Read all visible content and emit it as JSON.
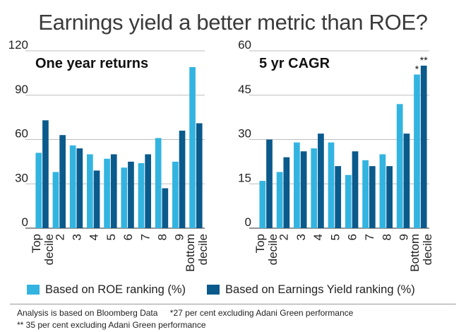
{
  "title": "Earnings yield a better metric than ROE?",
  "colors": {
    "roe": "#33b4e0",
    "ey": "#0b5a8c",
    "grid": "#bdbdbd"
  },
  "chart_data": [
    {
      "type": "bar",
      "title": "One year returns",
      "categories": [
        "Top decile",
        "2",
        "3",
        "4",
        "5",
        "6",
        "7",
        "8",
        "9",
        "Bottom decile"
      ],
      "ylim": [
        0,
        120
      ],
      "yticks": [
        0,
        30,
        60,
        90,
        120
      ],
      "series": [
        {
          "name": "Based on ROE ranking (%)",
          "values": [
            51,
            38,
            56,
            50,
            47,
            41,
            44,
            61,
            45,
            109
          ]
        },
        {
          "name": "Based on Earnings Yield ranking (%)",
          "values": [
            73,
            63,
            54,
            39,
            50,
            45,
            50,
            27,
            66,
            71
          ]
        }
      ],
      "annotations": []
    },
    {
      "type": "bar",
      "title": "5 yr CAGR",
      "categories": [
        "Top decile",
        "2",
        "3",
        "4",
        "5",
        "6",
        "7",
        "8",
        "9",
        "Bottom decile"
      ],
      "ylim": [
        0,
        60
      ],
      "yticks": [
        0,
        15,
        30,
        45,
        60
      ],
      "series": [
        {
          "name": "Based on ROE ranking (%)",
          "values": [
            16,
            19,
            29,
            27,
            29,
            18,
            23,
            25,
            42,
            52
          ]
        },
        {
          "name": "Based on Earnings Yield ranking (%)",
          "values": [
            30,
            24,
            26,
            32,
            21,
            26,
            21,
            21,
            32,
            55
          ]
        }
      ],
      "annotations": [
        {
          "text": "*",
          "category": 9,
          "series": 0
        },
        {
          "text": "**",
          "category": 9,
          "series": 1
        }
      ]
    }
  ],
  "legend": {
    "roe": "Based on ROE ranking (%)",
    "ey": "Based on Earnings Yield ranking (%)"
  },
  "footnotes": {
    "source": "Analysis is based on Bloomberg Data",
    "note1": "*27 per cent excluding Adani Green performance",
    "note2": "** 35 per cent excluding Adani Green performance"
  }
}
